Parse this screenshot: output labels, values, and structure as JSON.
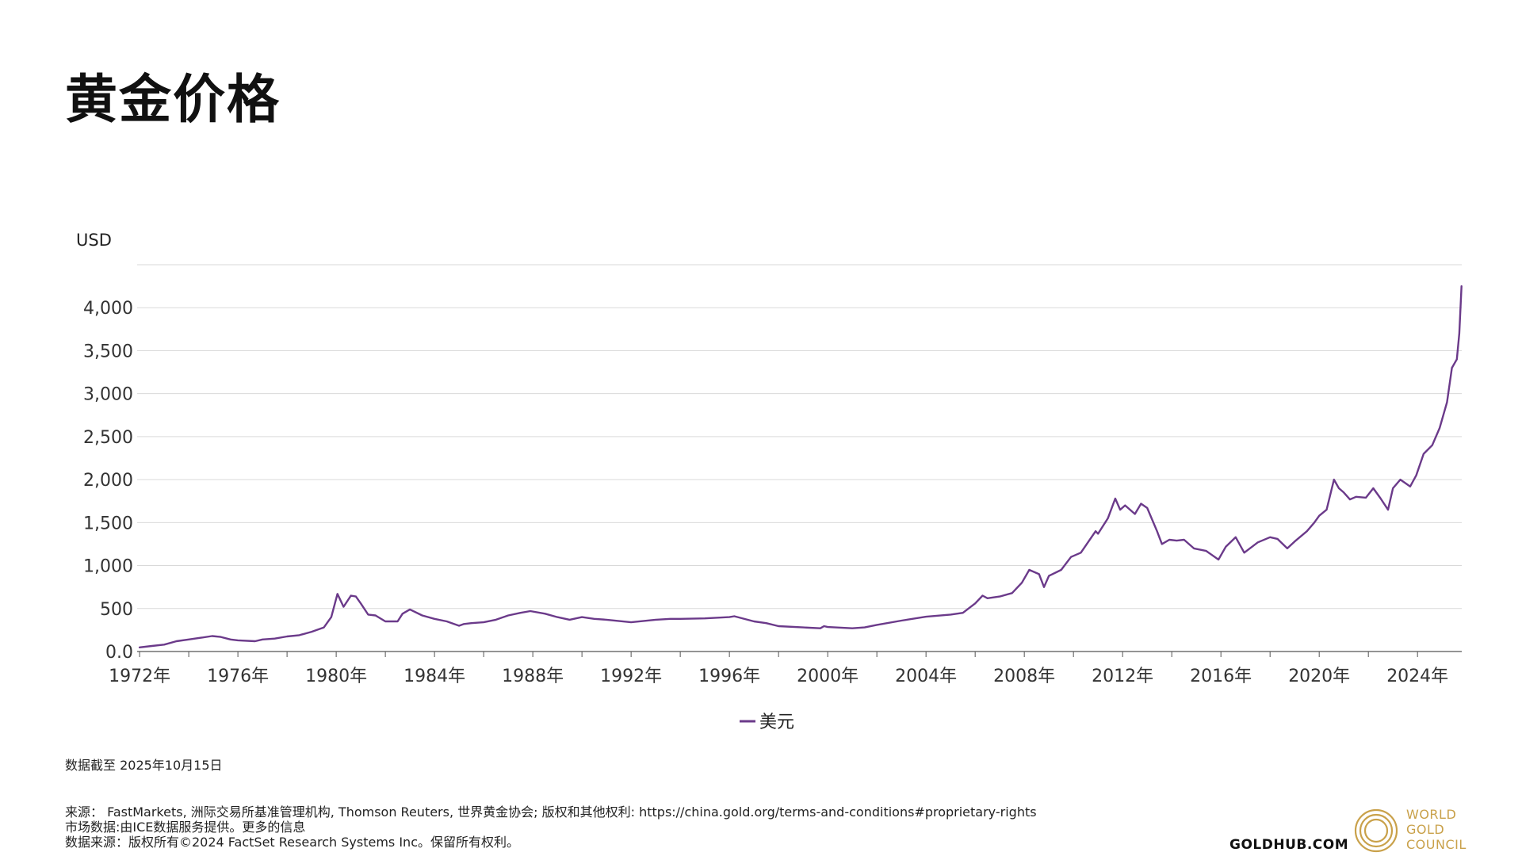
{
  "page": {
    "title": "黄金价格",
    "data_note": "数据截至 2025年10月15日",
    "sources": [
      "来源： FastMarkets, 洲际交易所基准管理机构, Thomson Reuters, 世界黄金协会; 版权和其他权利: https://china.gold.org/terms-and-conditions#proprietary-rights",
      "市场数据:由ICE数据服务提供。更多的信息",
      "数据来源：版权所有©2024 FactSet Research Systems Inc。保留所有权利。"
    ],
    "site": "GOLDHUB.COM",
    "brand_lines": [
      "WORLD",
      "GOLD",
      "COUNCIL"
    ]
  },
  "colors": {
    "series": "#6b3a8a",
    "brand_gold": "#c9a14a",
    "grid": "#d9d9d9",
    "axis": "#555555"
  },
  "chart_data": {
    "type": "line",
    "title": "黄金价格",
    "ylabel": "USD",
    "xlabel": "",
    "ylim": [
      0,
      4500
    ],
    "xlim": [
      1971.9,
      2025.8
    ],
    "yticks": [
      0,
      500,
      1000,
      1500,
      2000,
      2500,
      3000,
      3500,
      4000
    ],
    "ytick_labels": [
      "0.0",
      "500",
      "1,000",
      "1,500",
      "2,000",
      "2,500",
      "3,000",
      "3,500",
      "4,000"
    ],
    "xticks": [
      1972,
      1976,
      1980,
      1984,
      1988,
      1992,
      1996,
      2000,
      2004,
      2008,
      2012,
      2016,
      2020,
      2024
    ],
    "xtick_labels": [
      "1972年",
      "1976年",
      "1980年",
      "1984年",
      "1988年",
      "1992年",
      "1996年",
      "2000年",
      "2004年",
      "2008年",
      "2012年",
      "2016年",
      "2020年",
      "2024年"
    ],
    "minor_xticks": [
      1974,
      1978,
      1982,
      1986,
      1990,
      1994,
      1998,
      2002,
      2006,
      2010,
      2014,
      2018,
      2022
    ],
    "grid": true,
    "legend_position": "bottom-center",
    "series": [
      {
        "name": "美元",
        "x": [
          1972.0,
          1972.5,
          1973.0,
          1973.5,
          1974.0,
          1974.5,
          1974.95,
          1975.3,
          1975.7,
          1976.0,
          1976.7,
          1977.0,
          1977.5,
          1978.0,
          1978.5,
          1979.0,
          1979.5,
          1979.8,
          1980.05,
          1980.3,
          1980.6,
          1980.8,
          1981.0,
          1981.3,
          1981.6,
          1982.0,
          1982.5,
          1982.7,
          1983.0,
          1983.5,
          1984.0,
          1984.5,
          1985.0,
          1985.2,
          1985.5,
          1986.0,
          1986.5,
          1987.0,
          1987.5,
          1987.9,
          1988.5,
          1989.0,
          1989.5,
          1990.0,
          1990.5,
          1991.0,
          1992.0,
          1993.0,
          1993.6,
          1994.0,
          1995.0,
          1996.0,
          1996.2,
          1997.0,
          1997.5,
          1998.0,
          1999.0,
          1999.7,
          1999.85,
          2000.0,
          2001.0,
          2001.5,
          2002.0,
          2003.0,
          2004.0,
          2005.0,
          2005.5,
          2006.0,
          2006.3,
          2006.5,
          2007.0,
          2007.5,
          2007.9,
          2008.2,
          2008.6,
          2008.8,
          2009.0,
          2009.5,
          2009.9,
          2010.3,
          2010.9,
          2011.0,
          2011.4,
          2011.7,
          2011.9,
          2012.1,
          2012.5,
          2012.75,
          2013.0,
          2013.4,
          2013.6,
          2013.9,
          2014.2,
          2014.5,
          2014.9,
          2015.4,
          2015.9,
          2016.2,
          2016.6,
          2016.95,
          2017.5,
          2018.0,
          2018.3,
          2018.7,
          2019.0,
          2019.5,
          2019.8,
          2020.0,
          2020.3,
          2020.6,
          2020.8,
          2021.0,
          2021.25,
          2021.5,
          2021.9,
          2022.2,
          2022.5,
          2022.8,
          2023.0,
          2023.3,
          2023.7,
          2023.95,
          2024.25,
          2024.6,
          2024.9,
          2025.2,
          2025.4,
          2025.6,
          2025.7,
          2025.79
        ],
        "y": [
          48,
          65,
          80,
          120,
          140,
          160,
          180,
          170,
          140,
          130,
          120,
          140,
          150,
          175,
          190,
          230,
          280,
          400,
          670,
          520,
          650,
          640,
          560,
          430,
          420,
          350,
          350,
          440,
          490,
          420,
          380,
          350,
          300,
          320,
          330,
          340,
          370,
          420,
          450,
          470,
          440,
          400,
          370,
          400,
          380,
          370,
          340,
          370,
          380,
          380,
          385,
          400,
          410,
          350,
          330,
          295,
          280,
          270,
          295,
          285,
          270,
          280,
          310,
          360,
          405,
          430,
          450,
          560,
          650,
          620,
          640,
          680,
          800,
          950,
          900,
          750,
          880,
          950,
          1100,
          1150,
          1400,
          1370,
          1550,
          1780,
          1650,
          1700,
          1600,
          1720,
          1670,
          1400,
          1250,
          1300,
          1290,
          1300,
          1200,
          1170,
          1070,
          1220,
          1330,
          1150,
          1270,
          1330,
          1310,
          1200,
          1280,
          1400,
          1500,
          1580,
          1650,
          2000,
          1900,
          1850,
          1770,
          1800,
          1790,
          1900,
          1780,
          1650,
          1900,
          2000,
          1920,
          2050,
          2300,
          2400,
          2600,
          2900,
          3300,
          3400,
          3700,
          4250
        ]
      }
    ]
  }
}
